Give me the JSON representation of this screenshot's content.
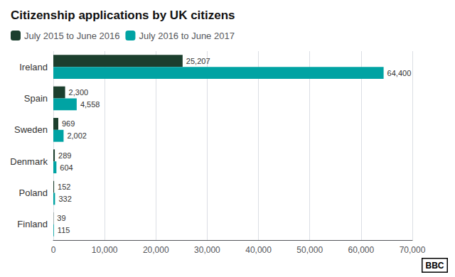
{
  "chart_data": {
    "type": "bar",
    "orientation": "horizontal",
    "title": "Citizenship applications by UK citizens",
    "categories": [
      "Ireland",
      "Spain",
      "Sweden",
      "Denmark",
      "Poland",
      "Finland"
    ],
    "series": [
      {
        "name": "July 2015 to June 2016",
        "color": "#1c3f2e",
        "values": [
          25207,
          2300,
          969,
          289,
          152,
          39
        ],
        "value_labels": [
          "25,207",
          "2,300",
          "969",
          "289",
          "152",
          "39"
        ]
      },
      {
        "name": "July 2016 to June 2017",
        "color": "#00a3a3",
        "values": [
          64400,
          4558,
          2002,
          604,
          332,
          115
        ],
        "value_labels": [
          "64,400",
          "4,558",
          "2,002",
          "604",
          "332",
          "115"
        ]
      }
    ],
    "xlim": [
      0,
      70000
    ],
    "xticks": [
      0,
      {
        "value": 10000,
        "label": "10,000"
      },
      {
        "value": 20000,
        "label": "20,000"
      },
      {
        "value": 30000,
        "label": "30,000"
      },
      {
        "value": 40000,
        "label": "40,000"
      },
      {
        "value": 50000,
        "label": "50,000"
      },
      {
        "value": 60000,
        "label": "60,000"
      },
      {
        "value": 70000,
        "label": "70,000"
      }
    ],
    "grid": true,
    "legend": "upper left",
    "data_labels": true,
    "annotations": [
      "BBC"
    ]
  }
}
